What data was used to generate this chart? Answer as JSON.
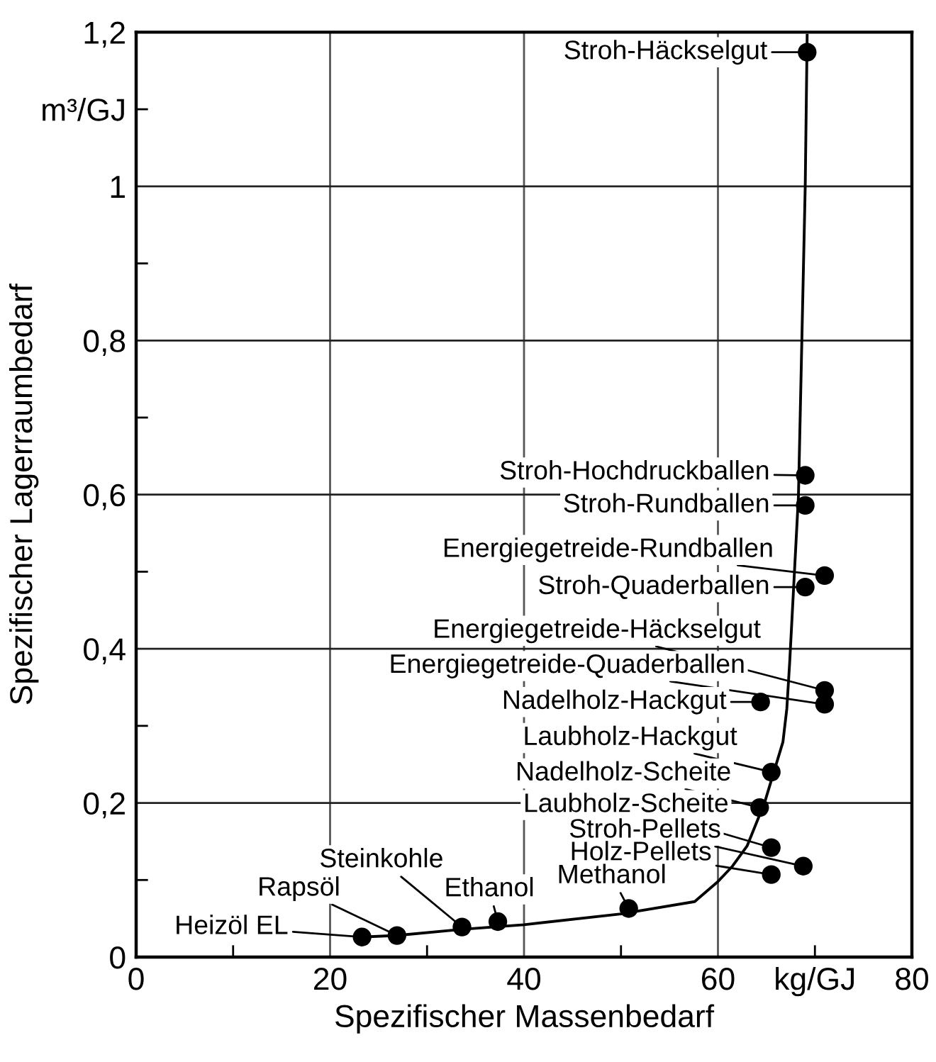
{
  "chart_data": {
    "type": "scatter",
    "xlabel": "Spezifischer Massenbedarf",
    "ylabel": "Spezifischer Lagerraumbedarf",
    "xlim": [
      0,
      80
    ],
    "ylim": [
      0,
      1.2
    ],
    "xticks": [
      0,
      {
        "value": 10,
        "label": null
      },
      20,
      {
        "value": 30,
        "label": null
      },
      40,
      {
        "value": 50,
        "label": null
      },
      60,
      {
        "value": 70,
        "label": "kg/GJ"
      },
      80
    ],
    "yticks": [
      0,
      {
        "value": 0.1,
        "label": null
      },
      {
        "value": 0.2,
        "label": "0,2"
      },
      {
        "value": 0.3,
        "label": null
      },
      {
        "value": 0.4,
        "label": "0,4"
      },
      {
        "value": 0.5,
        "label": null
      },
      {
        "value": 0.6,
        "label": "0,6"
      },
      {
        "value": 0.7,
        "label": null
      },
      {
        "value": 0.8,
        "label": "0,8"
      },
      {
        "value": 0.9,
        "label": null
      },
      1,
      {
        "value": 1.1,
        "label": "m³/GJ"
      },
      {
        "value": 1.2,
        "label": "1,2"
      }
    ],
    "grid": true,
    "series": [
      {
        "marker": "circle",
        "color": "#000000",
        "x": [
          69.2,
          69.0,
          69.0,
          71.0,
          69.0,
          71.0,
          71.0,
          64.4,
          65.5,
          64.3,
          65.5,
          68.8,
          65.5,
          50.8,
          37.3,
          33.6,
          26.9,
          23.3
        ],
        "values": [
          1.174,
          0.625,
          0.586,
          0.495,
          0.48,
          0.346,
          0.328,
          0.331,
          0.24,
          0.194,
          0.142,
          0.118,
          0.107,
          0.063,
          0.046,
          0.039,
          0.028,
          0.026
        ]
      },
      {
        "type": "line",
        "marker": "none",
        "line_style": "solid",
        "color": "#000000",
        "x": [
          23.3,
          26.9,
          33.6,
          40,
          50,
          57.6,
          60,
          61.5,
          63,
          64.8,
          66.7,
          67.1,
          67.4,
          68.3,
          69.0,
          69.2
        ],
        "values": [
          0.026,
          0.028,
          0.036,
          0.042,
          0.056,
          0.072,
          0.098,
          0.118,
          0.144,
          0.2,
          0.279,
          0.322,
          0.383,
          0.598,
          1.0,
          1.196
        ]
      }
    ],
    "annotations": [
      {
        "text": "Stroh-Häckselgut",
        "x": 69.2,
        "y": 1.174
      },
      {
        "text": "Stroh-Hochdruckballen",
        "x": 69.0,
        "y": 0.625
      },
      {
        "text": "Stroh-Rundballen",
        "x": 69.0,
        "y": 0.586
      },
      {
        "text": "Energiegetreide-Rundballen",
        "x": 71.0,
        "y": 0.495
      },
      {
        "text": "Stroh-Quaderballen",
        "x": 69.0,
        "y": 0.48
      },
      {
        "text": "Energiegetreide-Häckselgut",
        "x": 71.0,
        "y": 0.346
      },
      {
        "text": "Energiegetreide-Quaderballen",
        "x": 71.0,
        "y": 0.328
      },
      {
        "text": "Nadelholz-Hackgut",
        "x": 64.4,
        "y": 0.331
      },
      {
        "text": "Laubholz-Hackgut",
        "x": 65.5,
        "y": 0.24
      },
      {
        "text": "Nadelholz-Scheite",
        "x": 64.3,
        "y": 0.194
      },
      {
        "text": "Laubholz-Scheite",
        "x": 65.5,
        "y": 0.142
      },
      {
        "text": "Stroh-Pellets",
        "x": 68.8,
        "y": 0.118
      },
      {
        "text": "Holz-Pellets",
        "x": 65.5,
        "y": 0.107
      },
      {
        "text": "Methanol",
        "x": 50.8,
        "y": 0.063
      },
      {
        "text": "Ethanol",
        "x": 37.3,
        "y": 0.046
      },
      {
        "text": "Steinkohle",
        "x": 33.6,
        "y": 0.039
      },
      {
        "text": "Rapsöl",
        "x": 26.9,
        "y": 0.028
      },
      {
        "text": "Heizöl EL",
        "x": 23.3,
        "y": 0.026
      }
    ]
  }
}
